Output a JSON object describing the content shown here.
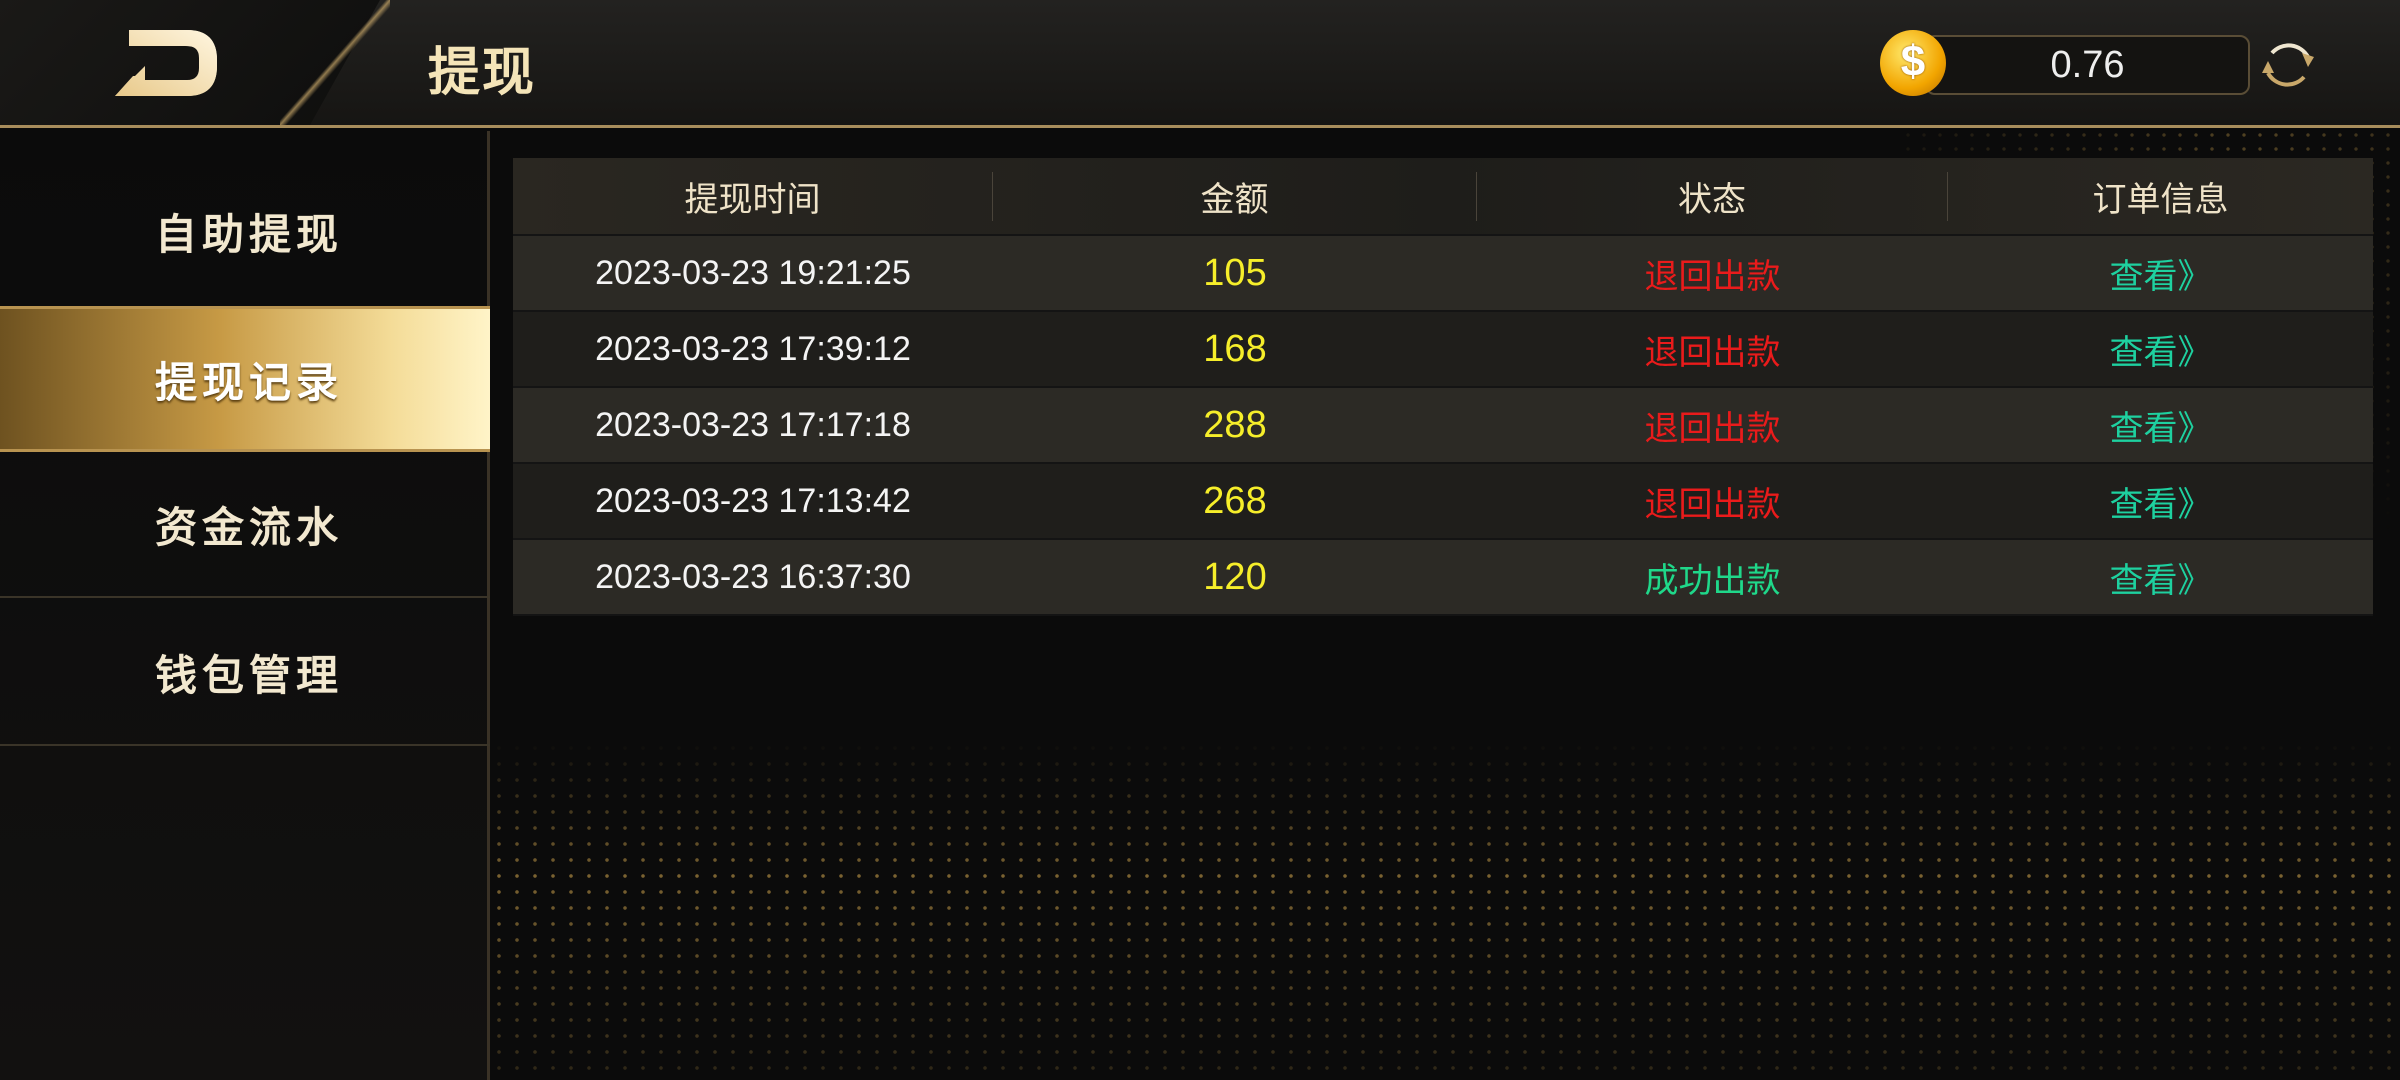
{
  "header": {
    "title": "提现",
    "balance": "0.76",
    "icons": {
      "back": "back-logo-icon",
      "coin": "coin-icon",
      "refresh": "refresh-icon"
    },
    "coin_symbol": "$"
  },
  "sidebar": {
    "items": [
      {
        "label": "自助提现"
      },
      {
        "label": "提现记录",
        "active": true
      },
      {
        "label": "资金流水"
      },
      {
        "label": "钱包管理"
      }
    ]
  },
  "table": {
    "columns": [
      "提现时间",
      "金额",
      "状态",
      "订单信息"
    ],
    "rows": [
      {
        "time": "2023-03-23 19:21:25",
        "amount": "105",
        "status": "退回出款",
        "action": "查看》"
      },
      {
        "time": "2023-03-23 17:39:12",
        "amount": "168",
        "status": "退回出款",
        "action": "查看》"
      },
      {
        "time": "2023-03-23 17:17:18",
        "amount": "288",
        "status": "退回出款",
        "action": "查看》"
      },
      {
        "time": "2023-03-23 17:13:42",
        "amount": "268",
        "status": "退回出款",
        "action": "查看》"
      },
      {
        "time": "2023-03-23 16:37:30",
        "amount": "120",
        "status": "成功出款",
        "action": "查看》"
      }
    ]
  },
  "colors": {
    "accent": "#c9a86a",
    "amount": "#f6ee2a",
    "returned": "#ea1b1b",
    "success": "#1fd88a",
    "link": "#1ed1a0"
  }
}
